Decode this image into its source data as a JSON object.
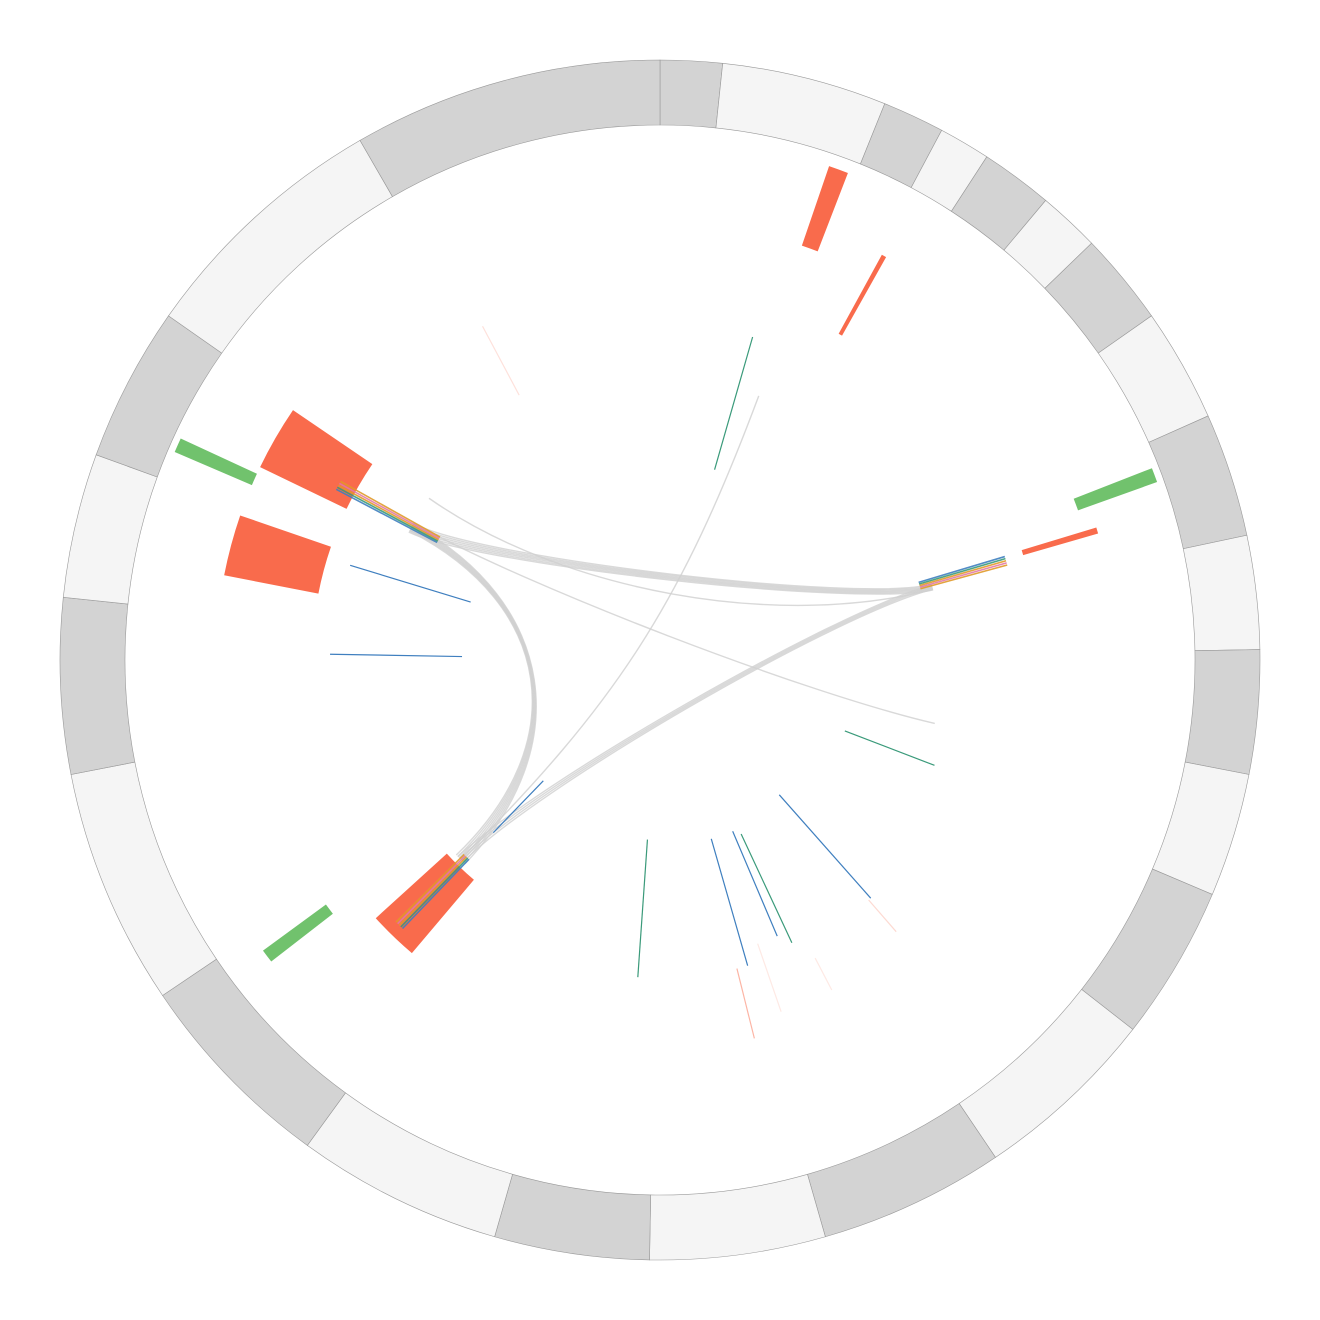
{
  "colors": {
    "segment_light": "#f5f5f5",
    "segment_dark": "#d3d3d3",
    "segment_stroke": "#999999",
    "red": "#f96b4c",
    "green": "#71c26d",
    "blue": "#3f7fbf",
    "teal": "#3a9a7a",
    "orange": "#e09a2a",
    "pink": "#e27aa5",
    "link": "#cfcfcf"
  },
  "segments": [
    {
      "start": 0,
      "end": 6,
      "shade": "dark"
    },
    {
      "start": 6,
      "end": 22,
      "shade": "light"
    },
    {
      "start": 22,
      "end": 28,
      "shade": "dark"
    },
    {
      "start": 28,
      "end": 33,
      "shade": "light"
    },
    {
      "start": 33,
      "end": 40,
      "shade": "dark"
    },
    {
      "start": 40,
      "end": 46,
      "shade": "light"
    },
    {
      "start": 46,
      "end": 55,
      "shade": "dark"
    },
    {
      "start": 55,
      "end": 66,
      "shade": "light"
    },
    {
      "start": 66,
      "end": 78,
      "shade": "dark"
    },
    {
      "start": 78,
      "end": 89,
      "shade": "light"
    },
    {
      "start": 89,
      "end": 101,
      "shade": "dark"
    },
    {
      "start": 101,
      "end": 113,
      "shade": "light"
    },
    {
      "start": 113,
      "end": 128,
      "shade": "dark"
    },
    {
      "start": 128,
      "end": 146,
      "shade": "light"
    },
    {
      "start": 146,
      "end": 164,
      "shade": "dark"
    },
    {
      "start": 164,
      "end": 181,
      "shade": "light"
    },
    {
      "start": 181,
      "end": 196,
      "shade": "dark"
    },
    {
      "start": 196,
      "end": 216,
      "shade": "light"
    },
    {
      "start": 216,
      "end": 236,
      "shade": "dark"
    },
    {
      "start": 236,
      "end": 259,
      "shade": "light"
    },
    {
      "start": 259,
      "end": 276,
      "shade": "dark"
    },
    {
      "start": 276,
      "end": 290,
      "shade": "light"
    },
    {
      "start": 290,
      "end": 305,
      "shade": "dark"
    },
    {
      "start": 305,
      "end": 330,
      "shade": "light"
    },
    {
      "start": 330,
      "end": 360,
      "shade": "dark"
    }
  ],
  "tracks": [
    {
      "angle": 20.0,
      "width": 2.2,
      "r1": 0.73,
      "r2": 0.87,
      "color": "red",
      "opacity": 1
    },
    {
      "angle": 29.0,
      "width": 0.6,
      "r1": 0.62,
      "r2": 0.77,
      "color": "red",
      "opacity": 1
    },
    {
      "angle": 69.5,
      "width": 1.6,
      "r1": 0.74,
      "r2": 0.88,
      "color": "green",
      "opacity": 1
    },
    {
      "angle": 73.5,
      "width": 0.8,
      "r1": 0.63,
      "r2": 0.76,
      "color": "red",
      "opacity": 1
    },
    {
      "angle": 224.0,
      "width": 7.5,
      "r1": 0.48,
      "r2": 0.64,
      "color": "red",
      "opacity": 1
    },
    {
      "angle": 233.0,
      "width": 1.6,
      "r1": 0.69,
      "r2": 0.82,
      "color": "green",
      "opacity": 1
    },
    {
      "angle": 285.0,
      "width": 8.0,
      "r1": 0.58,
      "r2": 0.74,
      "color": "red",
      "opacity": 1
    },
    {
      "angle": 294.0,
      "width": 1.6,
      "r1": 0.74,
      "r2": 0.88,
      "color": "green",
      "opacity": 1
    },
    {
      "angle": 300.0,
      "width": 8.5,
      "r1": 0.58,
      "r2": 0.74,
      "color": "red",
      "opacity": 1
    }
  ],
  "ticks": [
    {
      "angle": 16.0,
      "r1": 0.33,
      "r2": 0.56,
      "color": "teal",
      "opacity": 1
    },
    {
      "angle": 111.0,
      "r1": 0.33,
      "r2": 0.49,
      "color": "teal",
      "opacity": 1
    },
    {
      "angle": 138.5,
      "r1": 0.3,
      "r2": 0.53,
      "color": "blue",
      "opacity": 1
    },
    {
      "angle": 139.0,
      "r1": 0.53,
      "r2": 0.6,
      "color": "red",
      "opacity": 0.25
    },
    {
      "angle": 152.5,
      "r1": 0.56,
      "r2": 0.62,
      "color": "red",
      "opacity": 0.15
    },
    {
      "angle": 155.0,
      "r1": 0.32,
      "r2": 0.52,
      "color": "teal",
      "opacity": 1
    },
    {
      "angle": 157.0,
      "r1": 0.31,
      "r2": 0.5,
      "color": "blue",
      "opacity": 1
    },
    {
      "angle": 161.0,
      "r1": 0.5,
      "r2": 0.62,
      "color": "red",
      "opacity": 0.15
    },
    {
      "angle": 164.0,
      "r1": 0.31,
      "r2": 0.53,
      "color": "blue",
      "opacity": 1
    },
    {
      "angle": 166.0,
      "r1": 0.53,
      "r2": 0.65,
      "color": "red",
      "opacity": 0.5
    },
    {
      "angle": 184.0,
      "r1": 0.3,
      "r2": 0.53,
      "color": "teal",
      "opacity": 1
    },
    {
      "angle": 224.0,
      "r1": 0.28,
      "r2": 0.4,
      "color": "blue",
      "opacity": 1
    },
    {
      "angle": 271.0,
      "r1": 0.33,
      "r2": 0.55,
      "color": "blue",
      "opacity": 1
    },
    {
      "angle": 287.0,
      "r1": 0.33,
      "r2": 0.54,
      "color": "blue",
      "opacity": 1
    },
    {
      "angle": 332.0,
      "r1": 0.5,
      "r2": 0.63,
      "color": "red",
      "opacity": 0.2
    }
  ],
  "link_bundles": [
    {
      "a": 225.0,
      "b": 298.0,
      "spread": 2.5,
      "count": 7,
      "ctrl": 0.2
    },
    {
      "a": 298.0,
      "b": 75.0,
      "spread": 2.0,
      "count": 6,
      "ctrl": 0.35
    },
    {
      "a": 225.0,
      "b": 75.0,
      "spread": 1.5,
      "count": 4,
      "ctrl": 0.3
    },
    {
      "a": 225.0,
      "b": 20.5,
      "spread": 0.4,
      "count": 1,
      "ctrl": 0.1
    },
    {
      "a": 299.0,
      "b": 103.0,
      "spread": 0.4,
      "count": 1,
      "ctrl": 0.25
    },
    {
      "a": 305.0,
      "b": 75.5,
      "spread": 0.4,
      "count": 1,
      "ctrl": 0.2
    }
  ],
  "band_ends": [
    {
      "angle": 224.5,
      "r1": 0.46,
      "r2": 0.62
    },
    {
      "angle": 298.5,
      "r1": 0.42,
      "r2": 0.61
    },
    {
      "angle": 74.0,
      "r1": 0.45,
      "r2": 0.6
    }
  ]
}
